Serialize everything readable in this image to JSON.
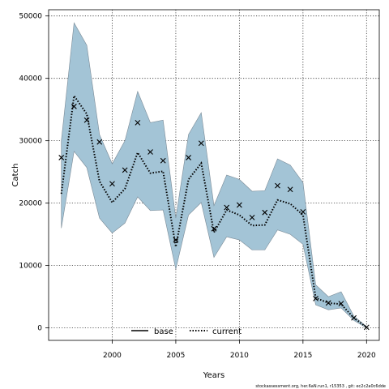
{
  "chart_data": {
    "type": "line",
    "title": "",
    "xlabel": "Years",
    "ylabel": "Catch",
    "xlim": [
      1995,
      2021
    ],
    "ylim": [
      -2000,
      51000
    ],
    "xticks": [
      2000,
      2005,
      2010,
      2015,
      2020
    ],
    "yticks": [
      0,
      10000,
      20000,
      30000,
      40000,
      50000
    ],
    "grid": true,
    "legend_position": "bottom-center",
    "colors": {
      "band": "#a3c4d6",
      "band_edge": "#7a8a96",
      "line": "#000000"
    },
    "x": [
      1996,
      1997,
      1998,
      1999,
      2000,
      2001,
      2002,
      2003,
      2004,
      2005,
      2006,
      2007,
      2008,
      2009,
      2010,
      2011,
      2012,
      2013,
      2014,
      2015,
      2016,
      2017,
      2018,
      2019,
      2020
    ],
    "series": [
      {
        "name": "base",
        "style": "cross",
        "values": [
          27300,
          35500,
          33300,
          29800,
          23100,
          25300,
          32900,
          28200,
          26800,
          14100,
          27300,
          29600,
          15900,
          19300,
          19700,
          17700,
          18500,
          22800,
          22200,
          18600,
          4700,
          4000,
          3900,
          1600,
          100
        ]
      },
      {
        "name": "current",
        "style": "dotted",
        "values": [
          21500,
          37200,
          34300,
          23500,
          20100,
          22300,
          28100,
          24800,
          25100,
          13000,
          23800,
          26400,
          15300,
          18900,
          18100,
          16400,
          16500,
          20500,
          19900,
          18100,
          4800,
          4000,
          3800,
          1600,
          100
        ],
        "upper": [
          30000,
          48900,
          45300,
          31000,
          26300,
          30000,
          37900,
          32900,
          33300,
          17600,
          31000,
          34500,
          19600,
          24500,
          23800,
          21900,
          22000,
          27100,
          26100,
          23300,
          6900,
          5000,
          5800,
          1900,
          200
        ],
        "lower": [
          16000,
          28300,
          25700,
          17600,
          15200,
          16800,
          21000,
          18800,
          18900,
          9400,
          18100,
          20100,
          11300,
          14600,
          14100,
          12500,
          12500,
          15700,
          15000,
          13400,
          3700,
          2900,
          3200,
          1200,
          0
        ]
      }
    ],
    "caption": "stockassessment.org, her.6aN.run1, r15353 , git: ec2c2a0c6dde"
  }
}
